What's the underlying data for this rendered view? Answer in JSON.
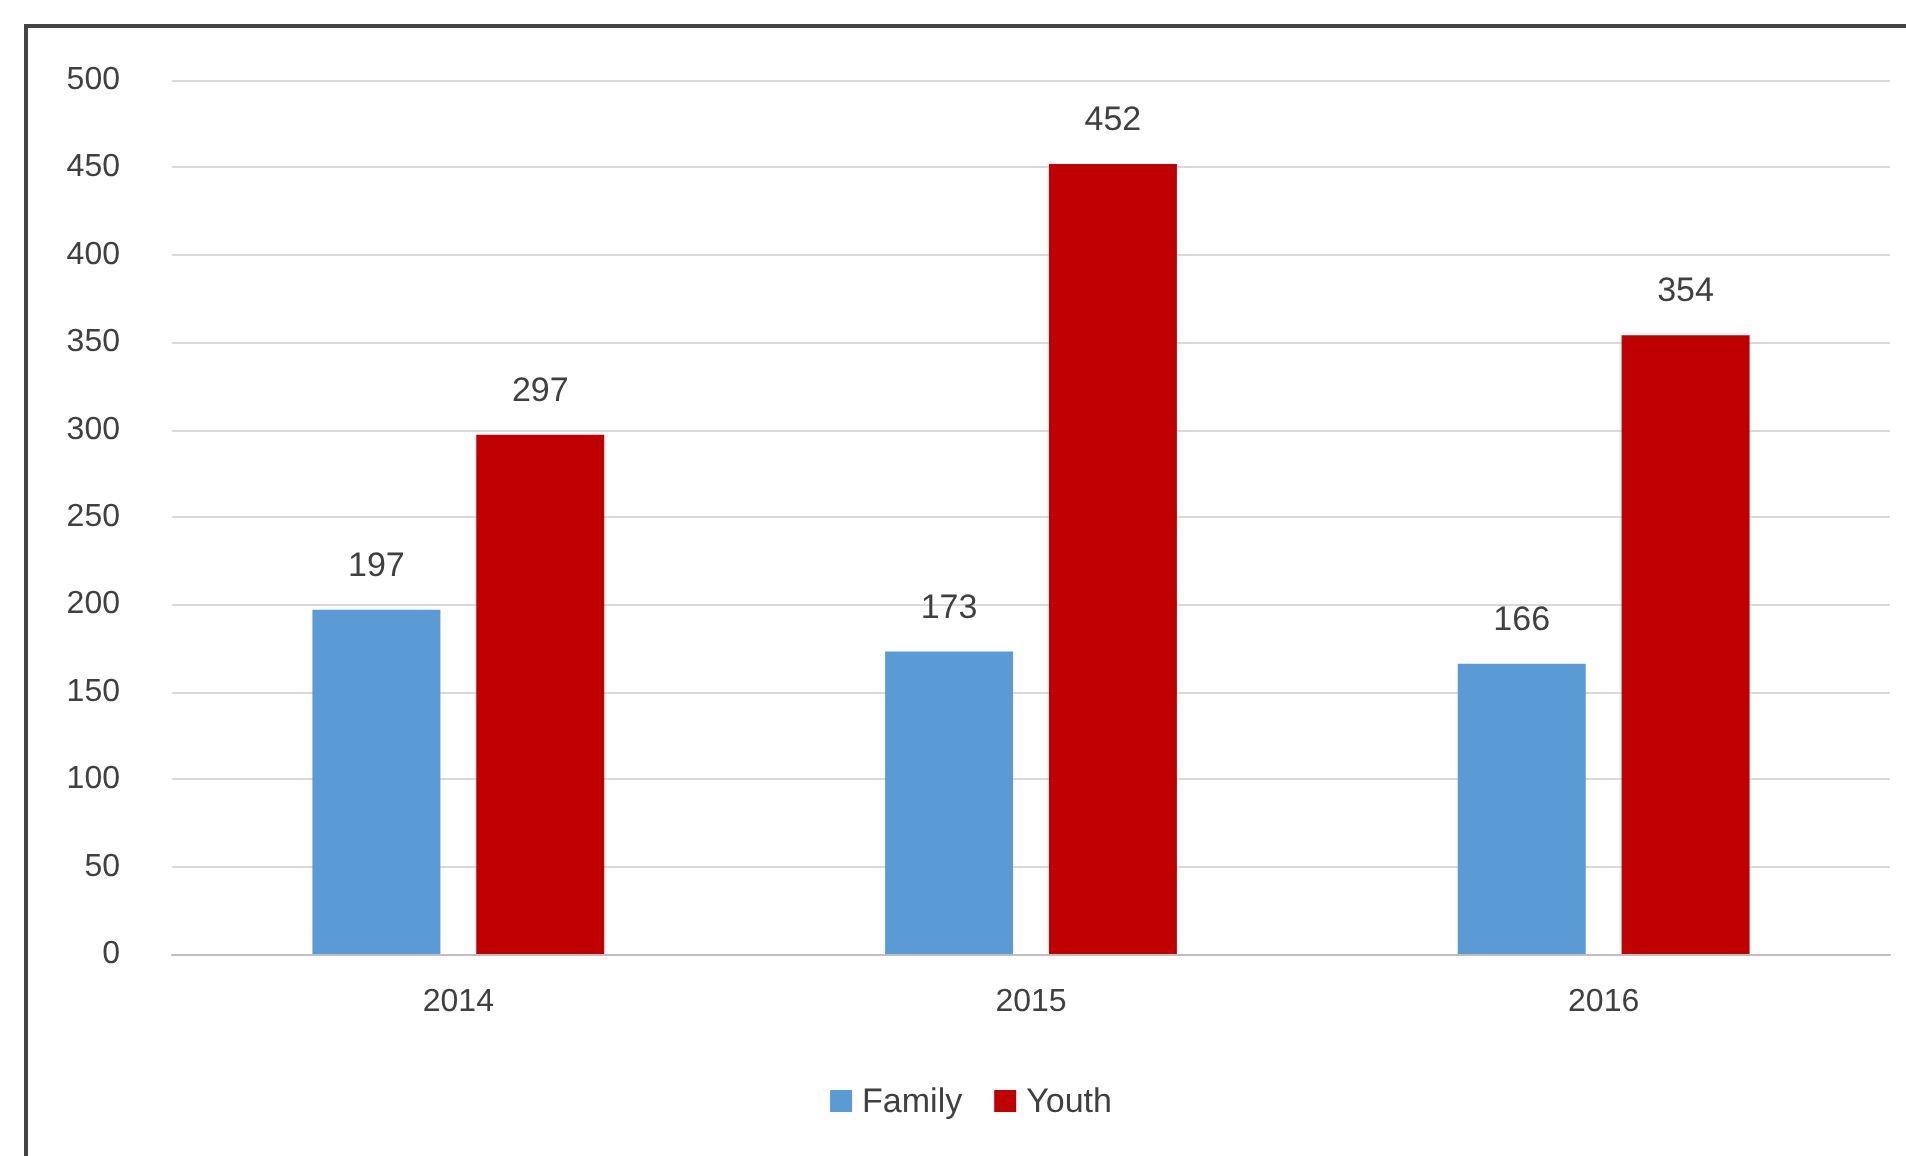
{
  "chart_data": {
    "type": "bar",
    "categories": [
      "2014",
      "2015",
      "2016"
    ],
    "series": [
      {
        "name": "Family",
        "color": "#5b9bd5",
        "values": [
          197,
          173,
          166
        ]
      },
      {
        "name": "Youth",
        "color": "#c00000",
        "values": [
          297,
          452,
          354
        ]
      }
    ],
    "ylim": [
      0,
      500
    ],
    "yticks": [
      0,
      50,
      100,
      150,
      200,
      250,
      300,
      350,
      400,
      450,
      500
    ],
    "grid": "y",
    "legend": "bottom",
    "data_labels": true
  }
}
